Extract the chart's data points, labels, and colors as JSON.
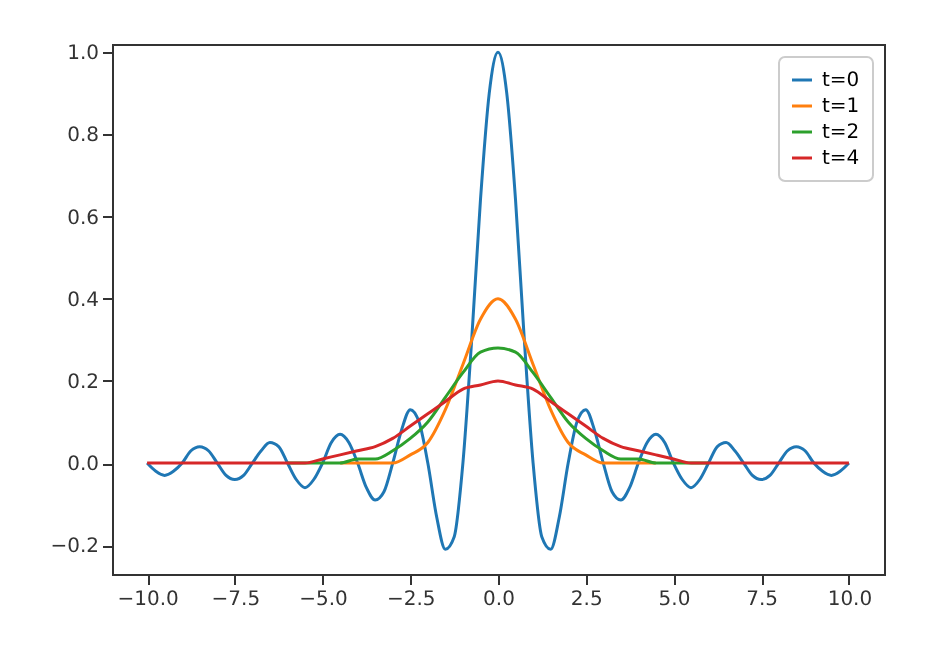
{
  "chart_data": {
    "type": "line",
    "legend": "top right",
    "grid": false,
    "line_style": "solid",
    "marker": "none",
    "xlim": [
      -11,
      11
    ],
    "ylim": [
      -0.27,
      1.02
    ],
    "xticks": [
      {
        "value": -10,
        "label": "−10.0"
      },
      {
        "value": -7.5,
        "label": "−7.5"
      },
      {
        "value": -5,
        "label": "−5.0"
      },
      {
        "value": -2.5,
        "label": "−2.5"
      },
      {
        "value": 0,
        "label": "0.0"
      },
      {
        "value": 2.5,
        "label": "2.5"
      },
      {
        "value": 5,
        "label": "5.0"
      },
      {
        "value": 7.5,
        "label": "7.5"
      },
      {
        "value": 10,
        "label": "10.0"
      }
    ],
    "yticks": [
      {
        "value": -0.2,
        "label": "−0.2"
      },
      {
        "value": 0,
        "label": "0.0"
      },
      {
        "value": 0.2,
        "label": "0.2"
      },
      {
        "value": 0.4,
        "label": "0.4"
      },
      {
        "value": 0.6,
        "label": "0.6"
      },
      {
        "value": 0.8,
        "label": "0.8"
      },
      {
        "value": 1.0,
        "label": "1.0"
      }
    ],
    "series": [
      {
        "name": "t=0",
        "color": "#1f77b4",
        "x": [
          -10,
          -9.75,
          -9.5,
          -9.25,
          -9,
          -8.75,
          -8.5,
          -8.25,
          -8,
          -7.75,
          -7.5,
          -7.25,
          -7,
          -6.75,
          -6.5,
          -6.25,
          -6,
          -5.75,
          -5.5,
          -5.25,
          -5,
          -4.75,
          -4.5,
          -4.25,
          -4,
          -3.75,
          -3.5,
          -3.25,
          -3,
          -2.75,
          -2.5,
          -2.25,
          -2,
          -1.75,
          -1.5,
          -1.25,
          -1,
          -0.75,
          -0.5,
          -0.25,
          0,
          0.25,
          0.5,
          0.75,
          1,
          1.25,
          1.5,
          1.75,
          2,
          2.25,
          2.5,
          2.75,
          3,
          3.25,
          3.5,
          3.75,
          4,
          4.25,
          4.5,
          4.75,
          5,
          5.25,
          5.5,
          5.75,
          6,
          6.25,
          6.5,
          6.75,
          7,
          7.25,
          7.5,
          7.75,
          8,
          8.25,
          8.5,
          8.75,
          9,
          9.25,
          9.5,
          9.75,
          10
        ],
        "values": [
          0,
          -0.02,
          -0.03,
          -0.02,
          0,
          0.03,
          0.04,
          0.03,
          0,
          -0.03,
          -0.04,
          -0.03,
          0,
          0.03,
          0.05,
          0.04,
          0,
          -0.04,
          -0.06,
          -0.04,
          0,
          0.05,
          0.07,
          0.05,
          0,
          -0.06,
          -0.09,
          -0.07,
          0,
          0.08,
          0.13,
          0.1,
          0,
          -0.13,
          -0.21,
          -0.18,
          0,
          0.3,
          0.64,
          0.9,
          1.0,
          0.9,
          0.64,
          0.3,
          0,
          -0.18,
          -0.21,
          -0.13,
          0,
          0.1,
          0.13,
          0.08,
          0,
          -0.07,
          -0.09,
          -0.06,
          0,
          0.05,
          0.07,
          0.05,
          0,
          -0.04,
          -0.06,
          -0.04,
          0,
          0.04,
          0.05,
          0.03,
          0,
          -0.03,
          -0.04,
          -0.03,
          0,
          0.03,
          0.04,
          0.03,
          0,
          -0.02,
          -0.03,
          -0.02,
          0
        ]
      },
      {
        "name": "t=1",
        "color": "#ff7f0e",
        "x": [
          -4.5,
          -4,
          -3.5,
          -3,
          -2.5,
          -2,
          -1.5,
          -1,
          -0.5,
          0,
          0.5,
          1,
          1.5,
          2,
          2.5,
          3,
          3.5,
          4,
          4.5
        ],
        "values": [
          0,
          0,
          0,
          0,
          0.02,
          0.05,
          0.13,
          0.24,
          0.35,
          0.4,
          0.35,
          0.24,
          0.13,
          0.05,
          0.02,
          0,
          0,
          0,
          0
        ]
      },
      {
        "name": "t=2",
        "color": "#2ca02c",
        "x": [
          -6,
          -5.5,
          -5,
          -4.5,
          -4,
          -3.5,
          -3,
          -2.5,
          -2,
          -1.5,
          -1,
          -0.5,
          0,
          0.5,
          1,
          1.5,
          2,
          2.5,
          3,
          3.5,
          4,
          4.5,
          5,
          5.5,
          6
        ],
        "values": [
          0,
          0,
          0,
          0,
          0.01,
          0.01,
          0.03,
          0.06,
          0.1,
          0.16,
          0.22,
          0.27,
          0.28,
          0.27,
          0.22,
          0.16,
          0.1,
          0.06,
          0.03,
          0.01,
          0.01,
          0,
          0,
          0,
          0
        ]
      },
      {
        "name": "t=4",
        "color": "#d62728",
        "x": [
          -10,
          -9.5,
          -9,
          -8.5,
          -8,
          -7.5,
          -7,
          -6.5,
          -6,
          -5.5,
          -5,
          -4.5,
          -4,
          -3.5,
          -3,
          -2.5,
          -2,
          -1.5,
          -1,
          -0.5,
          0,
          0.5,
          1,
          1.5,
          2,
          2.5,
          3,
          3.5,
          4,
          4.5,
          5,
          5.5,
          6,
          6.5,
          7,
          7.5,
          8,
          8.5,
          9,
          9.5,
          10
        ],
        "values": [
          0,
          0,
          0,
          0,
          0,
          0,
          0,
          0,
          0,
          0,
          0.01,
          0.02,
          0.03,
          0.04,
          0.06,
          0.09,
          0.12,
          0.15,
          0.18,
          0.19,
          0.2,
          0.19,
          0.18,
          0.15,
          0.12,
          0.09,
          0.06,
          0.04,
          0.03,
          0.02,
          0.01,
          0,
          0,
          0,
          0,
          0,
          0,
          0,
          0,
          0,
          0
        ]
      }
    ]
  }
}
